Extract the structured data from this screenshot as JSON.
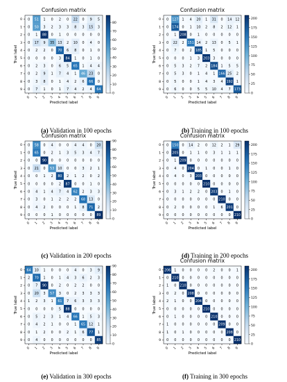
{
  "figure": {
    "captions": [
      {
        "tag": "(a)",
        "text": "Validation in 100 epochs"
      },
      {
        "tag": "(b)",
        "text": "Training in 100 epochs"
      },
      {
        "tag": "(c)",
        "text": "Validation in 200 epochs"
      },
      {
        "tag": "(d)",
        "text": "Training in 200 epochs"
      },
      {
        "tag": "(e)",
        "text": "Validation in 300 epochs"
      },
      {
        "tag": "(f)",
        "text": "Training in 300 epochs"
      }
    ]
  },
  "colors": {
    "cmap_low": "#f7fbff",
    "cmap_high": "#08306b",
    "text_dark": "#000000",
    "text_light": "#ffffff"
  },
  "chart_data": [
    {
      "type": "heatmap",
      "title": "Confusion matrix",
      "xlabel": "Predicted label",
      "ylabel": "True label",
      "x_ticks": [
        "0",
        "1",
        "2",
        "3",
        "4",
        "5",
        "6",
        "7",
        "8",
        "9"
      ],
      "y_ticks": [
        "0",
        "1",
        "2",
        "3",
        "4",
        "5",
        "6",
        "7",
        "8",
        "9"
      ],
      "colorbar_ticks": [
        0,
        10,
        20,
        30,
        40,
        50,
        60,
        70,
        80
      ],
      "colorbar_range": [
        0,
        88
      ],
      "matrix": [
        [
          0,
          51,
          1,
          0,
          2,
          0,
          22,
          0,
          9,
          5
        ],
        [
          0,
          50,
          3,
          2,
          3,
          3,
          8,
          3,
          15,
          3
        ],
        [
          0,
          1,
          88,
          0,
          1,
          0,
          0,
          0,
          0,
          0
        ],
        [
          0,
          17,
          9,
          35,
          13,
          2,
          10,
          0,
          4,
          0
        ],
        [
          0,
          2,
          2,
          0,
          70,
          6,
          8,
          0,
          1,
          0
        ],
        [
          0,
          0,
          0,
          0,
          3,
          84,
          1,
          0,
          1,
          0
        ],
        [
          0,
          2,
          3,
          0,
          6,
          5,
          65,
          1,
          4,
          4
        ],
        [
          0,
          2,
          9,
          1,
          7,
          4,
          1,
          46,
          23,
          0
        ],
        [
          0,
          3,
          8,
          0,
          1,
          4,
          2,
          6,
          66,
          0
        ],
        [
          0,
          7,
          1,
          0,
          1,
          7,
          4,
          2,
          4,
          64
        ]
      ]
    },
    {
      "type": "heatmap",
      "title": "Confusion matrix",
      "xlabel": "Predicted label",
      "ylabel": "True label",
      "x_ticks": [
        "0",
        "1",
        "2",
        "3",
        "4",
        "5",
        "6",
        "7",
        "8",
        "9"
      ],
      "y_ticks": [
        "0",
        "1",
        "2",
        "3",
        "4",
        "5",
        "6",
        "7",
        "8",
        "9"
      ],
      "colorbar_ticks": [
        0,
        25,
        50,
        75,
        100,
        125,
        150,
        175,
        200
      ],
      "colorbar_range": [
        0,
        208
      ],
      "matrix": [
        [
          0,
          127,
          1,
          4,
          20,
          1,
          31,
          0,
          14,
          12
        ],
        [
          0,
          174,
          0,
          1,
          10,
          2,
          8,
          2,
          12,
          1
        ],
        [
          0,
          1,
          208,
          0,
          1,
          0,
          0,
          0,
          0,
          0
        ],
        [
          0,
          22,
          2,
          151,
          14,
          2,
          13,
          0,
          5,
          1
        ],
        [
          0,
          7,
          0,
          2,
          185,
          1,
          5,
          0,
          0,
          0
        ],
        [
          0,
          0,
          0,
          1,
          3,
          203,
          3,
          0,
          0,
          0
        ],
        [
          0,
          5,
          3,
          2,
          7,
          2,
          184,
          1,
          5,
          5
        ],
        [
          0,
          5,
          3,
          0,
          1,
          4,
          1,
          166,
          25,
          2
        ],
        [
          0,
          5,
          0,
          0,
          1,
          4,
          3,
          4,
          192,
          1
        ],
        [
          0,
          6,
          0,
          0,
          5,
          5,
          10,
          4,
          7,
          173
        ]
      ]
    },
    {
      "type": "heatmap",
      "title": "Confusion matrix",
      "xlabel": "Predicted label",
      "ylabel": "True label",
      "x_ticks": [
        "0",
        "1",
        "2",
        "3",
        "4",
        "5",
        "6",
        "7",
        "8",
        "9"
      ],
      "y_ticks": [
        "0",
        "1",
        "2",
        "3",
        "4",
        "5",
        "6",
        "7",
        "8",
        "9"
      ],
      "colorbar_ticks": [
        0,
        10,
        20,
        30,
        40,
        50,
        60,
        70,
        80,
        90
      ],
      "colorbar_range": [
        0,
        90
      ],
      "matrix": [
        [
          0,
          58,
          0,
          4,
          0,
          0,
          4,
          4,
          0,
          20
        ],
        [
          0,
          65,
          0,
          2,
          1,
          3,
          5,
          3,
          4,
          7
        ],
        [
          0,
          0,
          90,
          0,
          0,
          0,
          0,
          0,
          0,
          0
        ],
        [
          0,
          21,
          0,
          53,
          10,
          0,
          0,
          3,
          2,
          1
        ],
        [
          0,
          0,
          1,
          2,
          80,
          2,
          1,
          2,
          0,
          2
        ],
        [
          0,
          0,
          0,
          0,
          2,
          87,
          0,
          0,
          1,
          0
        ],
        [
          0,
          4,
          1,
          4,
          7,
          4,
          62,
          2,
          3,
          3
        ],
        [
          0,
          3,
          0,
          1,
          2,
          2,
          2,
          68,
          13,
          0
        ],
        [
          0,
          4,
          2,
          0,
          0,
          0,
          1,
          8,
          71,
          2
        ],
        [
          0,
          0,
          0,
          1,
          0,
          0,
          0,
          0,
          0,
          89
        ]
      ]
    },
    {
      "type": "heatmap",
      "title": "Confusion matrix",
      "xlabel": "Predicted label",
      "ylabel": "True label",
      "x_ticks": [
        "0",
        "1",
        "2",
        "3",
        "4",
        "5",
        "6",
        "7",
        "8",
        "9"
      ],
      "y_ticks": [
        "0",
        "1",
        "2",
        "3",
        "4",
        "5",
        "6",
        "7",
        "8",
        "9"
      ],
      "colorbar_ticks": [
        0,
        25,
        50,
        75,
        100,
        125,
        150,
        175,
        200
      ],
      "colorbar_range": [
        0,
        210
      ],
      "matrix": [
        [
          0,
          150,
          0,
          14,
          2,
          0,
          12,
          2,
          1,
          29
        ],
        [
          0,
          205,
          0,
          1,
          1,
          0,
          3,
          1,
          1,
          1
        ],
        [
          0,
          1,
          209,
          0,
          0,
          0,
          0,
          0,
          0,
          0
        ],
        [
          0,
          4,
          0,
          204,
          0,
          1,
          0,
          0,
          1,
          0
        ],
        [
          0,
          4,
          0,
          3,
          203,
          0,
          0,
          0,
          0,
          0
        ],
        [
          0,
          0,
          0,
          0,
          0,
          210,
          0,
          0,
          0,
          0
        ],
        [
          0,
          3,
          1,
          2,
          2,
          0,
          203,
          0,
          1,
          0
        ],
        [
          0,
          0,
          0,
          0,
          0,
          0,
          0,
          210,
          0,
          0
        ],
        [
          0,
          2,
          0,
          0,
          0,
          0,
          1,
          6,
          201,
          0
        ],
        [
          0,
          0,
          0,
          0,
          0,
          0,
          0,
          0,
          0,
          210
        ]
      ]
    },
    {
      "type": "heatmap",
      "title": "",
      "xlabel": "Predicted label",
      "ylabel": "True label",
      "x_ticks": [
        "0",
        "1",
        "2",
        "3",
        "4",
        "5",
        "6",
        "7",
        "8",
        "9"
      ],
      "y_ticks": [
        "0",
        "1",
        "2",
        "3",
        "4",
        "5",
        "6",
        "7",
        "8",
        "9"
      ],
      "colorbar_ticks": [
        0,
        10,
        20,
        30,
        40,
        50,
        60,
        70,
        80,
        90
      ],
      "colorbar_range": [
        0,
        90
      ],
      "matrix": [
        [
          64,
          10,
          1,
          0,
          0,
          0,
          4,
          0,
          3,
          9
        ],
        [
          2,
          70,
          1,
          0,
          1,
          4,
          3,
          6,
          2,
          3
        ],
        [
          0,
          7,
          90,
          0,
          2,
          0,
          2,
          2,
          0,
          0
        ],
        [
          0,
          20,
          3,
          57,
          3,
          0,
          2,
          3,
          3,
          3
        ],
        [
          1,
          2,
          3,
          1,
          61,
          7,
          6,
          3,
          3,
          3
        ],
        [
          0,
          0,
          0,
          0,
          5,
          88,
          0,
          0,
          0,
          0
        ],
        [
          0,
          5,
          2,
          3,
          1,
          4,
          66,
          1,
          5,
          3
        ],
        [
          0,
          4,
          2,
          1,
          0,
          0,
          1,
          65,
          12,
          1
        ],
        [
          0,
          1,
          2,
          0,
          0,
          2,
          1,
          6,
          77,
          1
        ],
        [
          0,
          4,
          0,
          0,
          0,
          0,
          0,
          0,
          0,
          85
        ]
      ]
    },
    {
      "type": "heatmap",
      "title": "Confusion matrix",
      "xlabel": "Predicted label",
      "ylabel": "True label",
      "x_ticks": [
        "0",
        "1",
        "2",
        "3",
        "4",
        "5",
        "6",
        "7",
        "8",
        "9"
      ],
      "y_ticks": [
        "0",
        "1",
        "2",
        "3",
        "4",
        "5",
        "6",
        "7",
        "8",
        "9"
      ],
      "colorbar_ticks": [
        0,
        25,
        50,
        75,
        100,
        125,
        150,
        175,
        200
      ],
      "colorbar_range": [
        0,
        210
      ],
      "matrix": [
        [
          206,
          1,
          0,
          0,
          0,
          0,
          2,
          0,
          0,
          1
        ],
        [
          0,
          210,
          0,
          0,
          0,
          0,
          0,
          0,
          0,
          0
        ],
        [
          1,
          0,
          210,
          0,
          0,
          0,
          0,
          0,
          0,
          0
        ],
        [
          0,
          2,
          0,
          208,
          0,
          0,
          0,
          0,
          0,
          0
        ],
        [
          2,
          1,
          0,
          0,
          204,
          0,
          0,
          0,
          0,
          0
        ],
        [
          0,
          0,
          0,
          0,
          0,
          210,
          0,
          0,
          0,
          0
        ],
        [
          0,
          1,
          0,
          0,
          0,
          0,
          210,
          0,
          0,
          0
        ],
        [
          1,
          0,
          0,
          0,
          0,
          0,
          0,
          209,
          0,
          0
        ],
        [
          1,
          0,
          1,
          0,
          0,
          0,
          0,
          0,
          208,
          0
        ],
        [
          0,
          0,
          0,
          0,
          0,
          0,
          0,
          0,
          0,
          210
        ]
      ]
    }
  ]
}
